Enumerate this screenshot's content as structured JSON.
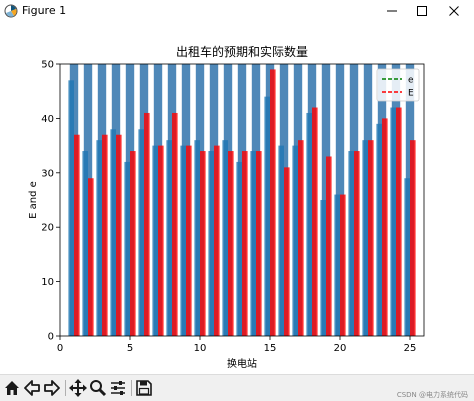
{
  "window": {
    "title": "Figure 1"
  },
  "watermark": "CSDN @电力系统代码",
  "toolbar": {
    "items": [
      "home-icon",
      "back-icon",
      "forward-icon",
      "pan-icon",
      "zoom-icon",
      "configure-icon",
      "save-icon"
    ]
  },
  "chart_data": {
    "type": "bar",
    "title": "出租车的预期和实际数量",
    "xlabel": "换电站",
    "ylabel": "E  and  e",
    "xlim": [
      0,
      26
    ],
    "ylim": [
      0,
      50
    ],
    "xticks": [
      0,
      5,
      10,
      15,
      20,
      25
    ],
    "yticks": [
      0,
      10,
      20,
      30,
      40,
      50
    ],
    "grid": false,
    "legend_position": "top-right",
    "x": [
      1,
      2,
      3,
      4,
      5,
      6,
      7,
      8,
      9,
      10,
      11,
      12,
      13,
      14,
      15,
      16,
      17,
      18,
      19,
      20,
      21,
      22,
      23,
      24,
      25
    ],
    "series": [
      {
        "name": "e",
        "color": "#1f77b4",
        "alpha": 0.8,
        "line_color": "#008000",
        "values": [
          47,
          34,
          36,
          38,
          32,
          38,
          35,
          36,
          35,
          36,
          34,
          36,
          32,
          34,
          44,
          35,
          35,
          41,
          25,
          26,
          34,
          36,
          39,
          42,
          29
        ]
      },
      {
        "name": "E",
        "color": "#ff0000",
        "alpha": 0.8,
        "line_color": "#ff0000",
        "values": [
          37,
          29,
          37,
          37,
          34,
          41,
          35,
          41,
          35,
          34,
          35,
          34,
          34,
          34,
          49,
          31,
          36,
          42,
          33,
          26,
          34,
          36,
          40,
          42,
          36
        ]
      }
    ],
    "background_band_color": "#4682b4"
  }
}
